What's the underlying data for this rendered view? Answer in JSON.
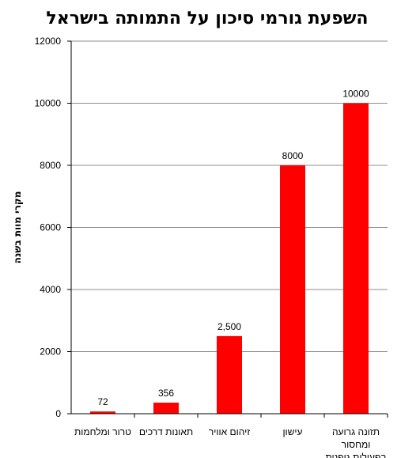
{
  "chart_data": {
    "type": "bar",
    "title": "השפעת גורמי סיכון על התמותה בישראל",
    "xlabel": "",
    "ylabel": "מקרי מוות בשנה",
    "ylim": [
      0,
      12000
    ],
    "yticks": [
      0,
      2000,
      4000,
      6000,
      8000,
      10000,
      12000
    ],
    "ytick_labels": [
      "0",
      "2000",
      "4000",
      "6000",
      "8000",
      "10000",
      "12000"
    ],
    "grid": "horizontal",
    "legend": "none",
    "bar_color": "#ff0000",
    "categories": [
      [
        "טרור ומלחמות"
      ],
      [
        "תאונות דרכים"
      ],
      [
        "זיהום אוויר"
      ],
      [
        "עישון"
      ],
      [
        "תזונה גרועה",
        "ומחסור",
        "בפעילות גופנית"
      ]
    ],
    "values": [
      72,
      356,
      2500,
      8000,
      10000
    ],
    "data_labels": [
      "72",
      "356",
      "2,500",
      "8000",
      "10000"
    ]
  }
}
